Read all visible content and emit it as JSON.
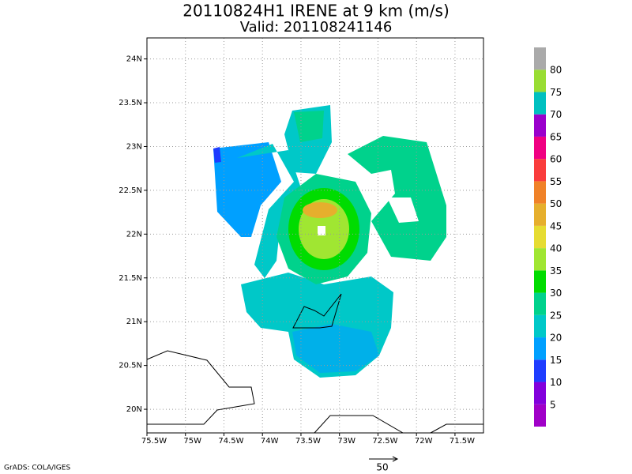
{
  "title": "20110824H1 IRENE at 9 km (m/s)",
  "subtitle": "Valid: 201108241146",
  "map": {
    "xlim": [
      -75.5,
      -71.13
    ],
    "ylim": [
      19.73,
      24.24
    ],
    "xticks": [
      {
        "value": -75.5,
        "label": "75.5W"
      },
      {
        "value": -75,
        "label": "75W"
      },
      {
        "value": -74.5,
        "label": "74.5W"
      },
      {
        "value": -74,
        "label": "74W"
      },
      {
        "value": -73.5,
        "label": "73.5W"
      },
      {
        "value": -73,
        "label": "73W"
      },
      {
        "value": -72.5,
        "label": "72.5W"
      },
      {
        "value": -72,
        "label": "72W"
      },
      {
        "value": -71.5,
        "label": "71.5W"
      }
    ],
    "yticks": [
      {
        "value": 20,
        "label": "20N"
      },
      {
        "value": 20.5,
        "label": "20.5N"
      },
      {
        "value": 21,
        "label": "21N"
      },
      {
        "value": 21.5,
        "label": "21.5N"
      },
      {
        "value": 22,
        "label": "22N"
      },
      {
        "value": 22.5,
        "label": "22.5N"
      },
      {
        "value": 23,
        "label": "23N"
      },
      {
        "value": 23.5,
        "label": "23.5N"
      },
      {
        "value": 24,
        "label": "24N"
      }
    ],
    "grid": true
  },
  "colorbar": {
    "levels": [
      5,
      10,
      15,
      20,
      25,
      30,
      35,
      40,
      45,
      50,
      55,
      60,
      65,
      70,
      75,
      80
    ],
    "colors": [
      "#a000c8",
      "#8200dc",
      "#1e3cff",
      "#00a0ff",
      "#00c8c8",
      "#00d28c",
      "#00dc00",
      "#a0e632",
      "#e6dc32",
      "#e6af2d",
      "#f08228",
      "#fa3c3c",
      "#f00082",
      "#9a00cc",
      "#00c0c0",
      "#99dd33",
      "#aaaaaa"
    ]
  },
  "vector_scale": 50,
  "footer": "GrADS: COLA/IGES"
}
